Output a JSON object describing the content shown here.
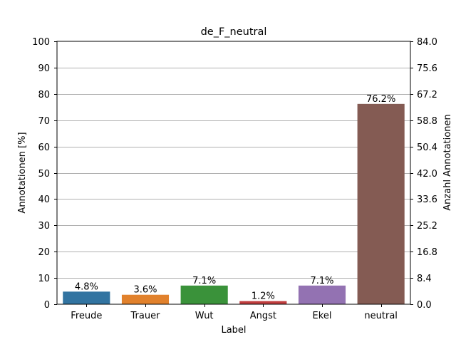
{
  "chart_data": {
    "type": "bar",
    "title": "de_F_neutral",
    "xlabel": "Label",
    "ylabel": "Annotationen [%]",
    "y2label": "Anzahl Annotationen",
    "categories": [
      "Freude",
      "Trauer",
      "Wut",
      "Angst",
      "Ekel",
      "neutral"
    ],
    "values": [
      4.8,
      3.6,
      7.1,
      1.2,
      7.1,
      76.2
    ],
    "data_labels": [
      "4.8%",
      "3.6%",
      "7.1%",
      "1.2%",
      "7.1%",
      "76.2%"
    ],
    "colors": [
      "#3274a1",
      "#e1812c",
      "#3a923a",
      "#c03d3e",
      "#9372b2",
      "#845b53"
    ],
    "ylim": [
      0,
      100
    ],
    "yticks": [
      "0",
      "10",
      "20",
      "30",
      "40",
      "50",
      "60",
      "70",
      "80",
      "90",
      "100"
    ],
    "y2lim": [
      0,
      84
    ],
    "y2ticks": [
      "0.0",
      "8.4",
      "16.8",
      "25.2",
      "33.6",
      "42.0",
      "50.4",
      "58.8",
      "67.2",
      "75.6",
      "84.0"
    ],
    "grid": "horizontal",
    "legend": "none"
  }
}
